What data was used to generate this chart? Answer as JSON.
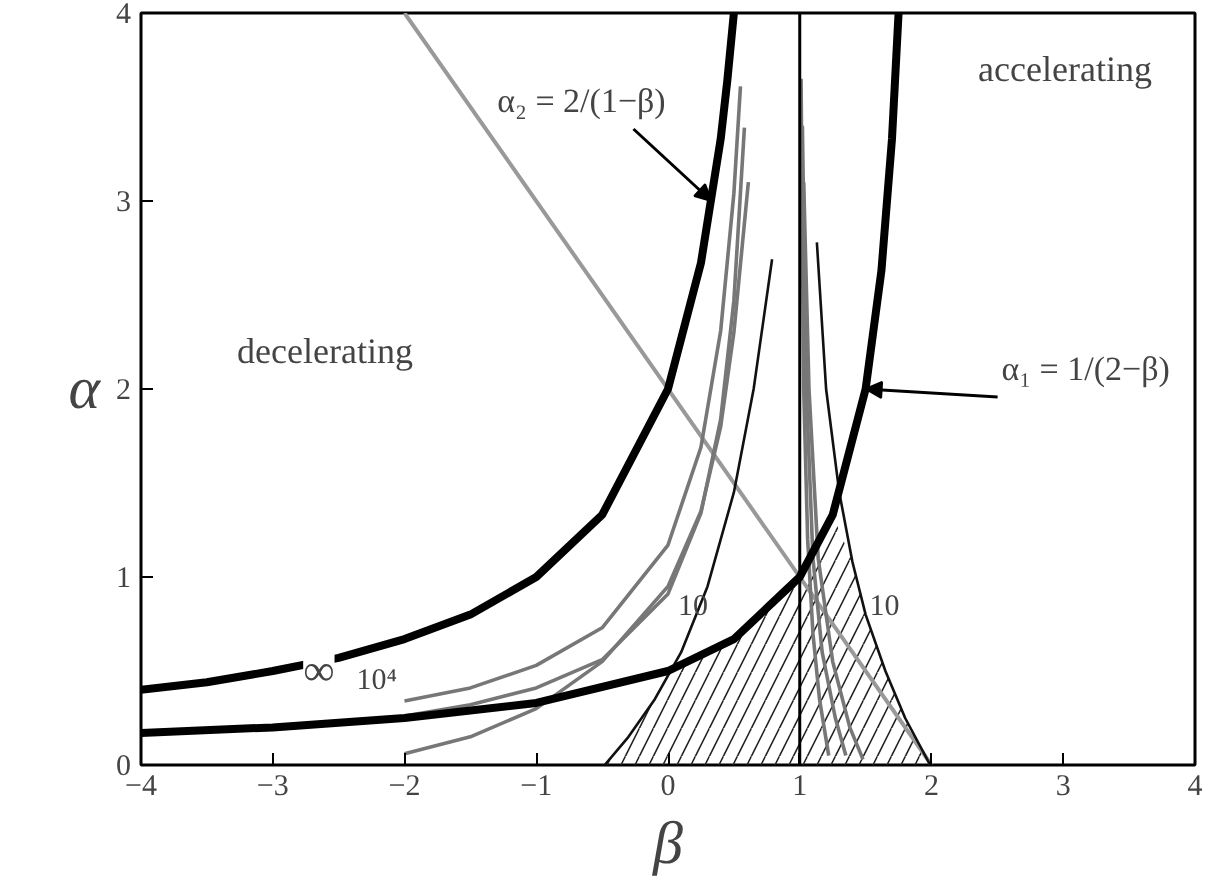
{
  "chart_data": {
    "type": "line",
    "xlabel": "β",
    "ylabel": "α",
    "xlim": [
      -4,
      4
    ],
    "ylim": [
      0,
      4
    ],
    "xticks": [
      -4,
      -3,
      -2,
      -1,
      0,
      1,
      2,
      3,
      4
    ],
    "yticks": [
      0,
      1,
      2,
      3,
      4
    ],
    "grid": false,
    "line_style": "solid",
    "series": [
      {
        "type": "area",
        "color": "#222222",
        "x": [
          -0.48,
          -0.3,
          -0.1,
          0.05,
          0.5,
          1,
          1.25,
          1.4,
          1.5,
          1.65,
          1.8,
          1.99
        ],
        "values": [
          0,
          0.15,
          0.35,
          0.51,
          0.67,
          1,
          1.33,
          1.08,
          0.8,
          0.5,
          0.25,
          0
        ]
      },
      {
        "color": "#999999",
        "x": [
          -2,
          2
        ],
        "values": [
          4,
          0
        ]
      },
      {
        "color": "#777777",
        "x": [
          -2,
          -1.5,
          -1,
          -0.5,
          0,
          0.25,
          0.4,
          0.5,
          0.55
        ],
        "values": [
          0.34,
          0.41,
          0.53,
          0.73,
          1.17,
          1.69,
          2.31,
          3.04,
          3.61
        ]
      },
      {
        "color": "#777777",
        "x": [
          -2,
          -1.5,
          -1,
          -0.5,
          0,
          0.25,
          0.4,
          0.5,
          0.58
        ],
        "values": [
          0.26,
          0.32,
          0.41,
          0.56,
          0.91,
          1.34,
          1.84,
          2.47,
          3.39
        ]
      },
      {
        "color": "#777777",
        "x": [
          -2,
          -1.5,
          -1,
          -0.5,
          0,
          0.25,
          0.4,
          0.5,
          0.61
        ],
        "values": [
          0.06,
          0.15,
          0.3,
          0.55,
          0.95,
          1.35,
          1.8,
          2.3,
          3.1
        ]
      },
      {
        "color": "#777777",
        "x": [
          1.01,
          1.03,
          1.06,
          1.1,
          1.15,
          1.22
        ],
        "values": [
          3.65,
          2.0,
          1.2,
          0.7,
          0.35,
          0.05
        ]
      },
      {
        "color": "#777777",
        "x": [
          1.02,
          1.05,
          1.1,
          1.17,
          1.27,
          1.35
        ],
        "values": [
          3.4,
          2.0,
          1.1,
          0.6,
          0.25,
          0.05
        ]
      },
      {
        "color": "#777777",
        "x": [
          1.03,
          1.07,
          1.14,
          1.25,
          1.38,
          1.48
        ],
        "values": [
          3.1,
          2.0,
          1.1,
          0.55,
          0.2,
          0.03
        ]
      },
      {
        "color": "#111111",
        "x": [
          -0.48,
          -0.3,
          -0.1,
          0.1,
          0.3,
          0.5,
          0.65,
          0.79
        ],
        "values": [
          0,
          0.15,
          0.35,
          0.6,
          0.95,
          1.45,
          2.0,
          2.69
        ]
      },
      {
        "color": "#111111",
        "x": [
          1.13,
          1.2,
          1.3,
          1.4,
          1.5,
          1.65,
          1.8,
          1.99
        ],
        "values": [
          2.78,
          2.0,
          1.45,
          1.08,
          0.8,
          0.5,
          0.25,
          0
        ]
      },
      {
        "color": "#000000",
        "x": [
          -4,
          -3.5,
          -3,
          -2.5,
          -2,
          -1.5,
          -1,
          -0.5,
          0,
          0.25,
          0.4,
          0.45,
          0.5
        ],
        "values": [
          0.4,
          0.44,
          0.5,
          0.57,
          0.67,
          0.8,
          1,
          1.33,
          2,
          2.67,
          3.33,
          3.64,
          4
        ]
      },
      {
        "color": "#000000",
        "x": [
          -4,
          -3,
          -2,
          -1,
          0,
          0.5,
          1,
          1.25,
          1.5,
          1.62,
          1.7,
          1.75
        ],
        "values": [
          0.17,
          0.2,
          0.25,
          0.33,
          0.5,
          0.67,
          1,
          1.33,
          2,
          2.63,
          3.33,
          4
        ]
      }
    ],
    "ref_lines": [
      {
        "axis": "x",
        "value": 1,
        "color": "#000000"
      }
    ],
    "annotations": [
      "decelerating",
      "accelerating",
      {
        "text": "α₂ = 2/(1−β)",
        "x": 0.33,
        "y": 3.0
      },
      {
        "text": "α₁ = 1/(2−β)",
        "x": 1.5,
        "y": 2.0
      },
      {
        "text": "∞",
        "x": -2.65,
        "y": 0.57
      },
      "10⁴",
      "10",
      {
        "text": "10",
        "x": 1.4,
        "y": 0.85
      }
    ]
  }
}
